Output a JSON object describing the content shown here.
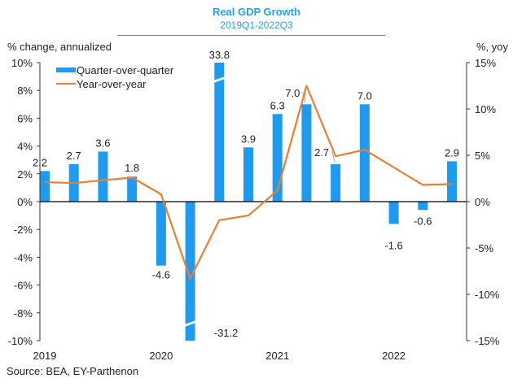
{
  "header": {
    "title": "Real GDP Growth",
    "subtitle": "2019Q1-2022Q3",
    "left_axis_title": "% change, annualized",
    "right_axis_title": "%, yoy"
  },
  "footer": {
    "source": "Source: BEA, EY-Parthenon"
  },
  "colors": {
    "bar": "#1e9bf0",
    "line": "#ed7d31",
    "title": "#2a9fe8",
    "axis": "#333333"
  },
  "chart_data": {
    "type": "bar",
    "title": "Real GDP Growth",
    "subtitle": "2019Q1-2022Q3",
    "xlabel": "",
    "ylabel": "% change, annualized",
    "y2label": "%, yoy",
    "ylim": [
      -10,
      10
    ],
    "y2lim": [
      -15,
      15
    ],
    "yticks": [
      "-10%",
      "-8%",
      "-6%",
      "-4%",
      "-2%",
      "0%",
      "2%",
      "4%",
      "6%",
      "8%",
      "10%"
    ],
    "ytick_values": [
      -10,
      -8,
      -6,
      -4,
      -2,
      0,
      2,
      4,
      6,
      8,
      10
    ],
    "y2ticks": [
      "-15%",
      "-10%",
      "-5%",
      "0%",
      "5%",
      "10%",
      "15%"
    ],
    "y2tick_values": [
      -15,
      -10,
      -5,
      0,
      5,
      10,
      15
    ],
    "grid": false,
    "legend": "top-left",
    "categories": [
      "2019Q1",
      "2019Q2",
      "2019Q3",
      "2019Q4",
      "2020Q1",
      "2020Q2",
      "2020Q3",
      "2020Q4",
      "2021Q1",
      "2021Q2",
      "2021Q3",
      "2021Q4",
      "2022Q1",
      "2022Q2",
      "2022Q3"
    ],
    "x_tick_labels": [
      {
        "index": 0,
        "label": "2019"
      },
      {
        "index": 4,
        "label": "2020"
      },
      {
        "index": 8,
        "label": "2021"
      },
      {
        "index": 12,
        "label": "2022"
      }
    ],
    "series": [
      {
        "name": "Quarter-over-quarter",
        "type": "bar",
        "axis": "left",
        "values": [
          2.2,
          2.7,
          3.6,
          1.8,
          -4.6,
          -31.2,
          33.8,
          3.9,
          6.3,
          7.0,
          2.7,
          7.0,
          -1.6,
          -0.6,
          2.9
        ],
        "labels": [
          "2.2",
          "2.7",
          "3.6",
          "1.8",
          "-4.6",
          "-31.2",
          "33.8",
          "3.9",
          "6.3",
          "7.0",
          "2.7",
          "7.0",
          "-1.6",
          "-0.6",
          "2.9"
        ],
        "axis_break": [
          5,
          6
        ]
      },
      {
        "name": "Year-over-year",
        "type": "line",
        "axis": "right",
        "values": [
          2.1,
          2.0,
          2.3,
          2.6,
          0.8,
          -8.3,
          -2.0,
          -1.5,
          1.2,
          12.5,
          4.9,
          5.6,
          3.7,
          1.8,
          1.9
        ]
      }
    ]
  }
}
